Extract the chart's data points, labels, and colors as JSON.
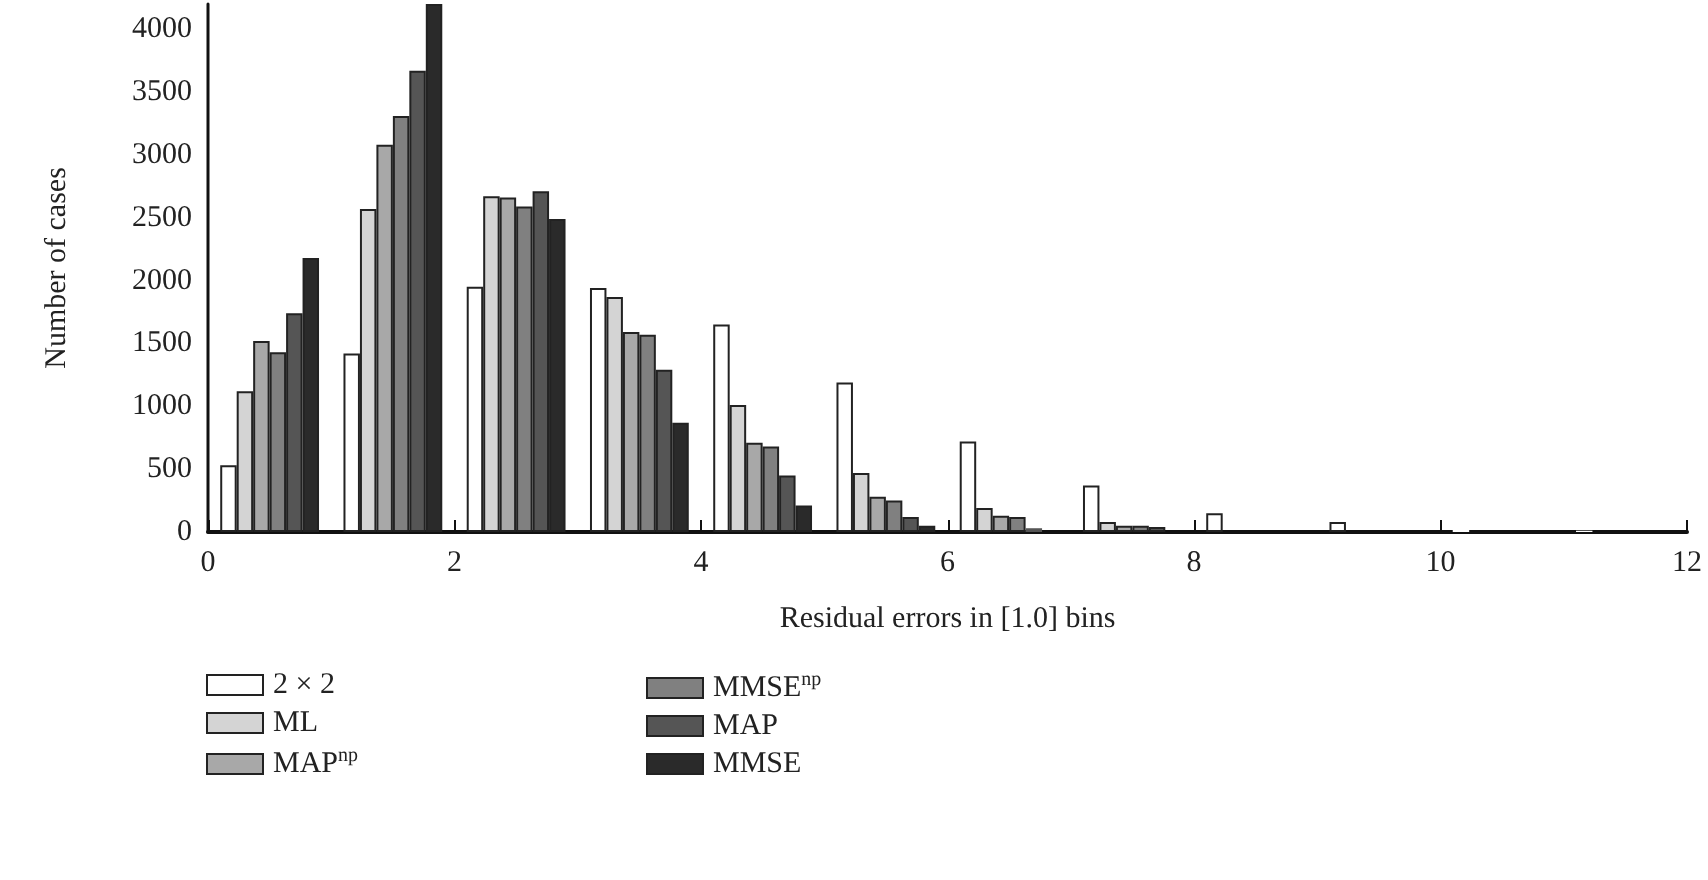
{
  "chart_data": {
    "type": "bar",
    "xlabel": "Residual errors in [1.0] bins",
    "ylabel": "Number of cases",
    "x": [
      0.5,
      1.5,
      2.5,
      3.5,
      4.5,
      5.5,
      6.5,
      7.5,
      8.5,
      9.5,
      10.5,
      11.5
    ],
    "series": [
      {
        "name": "2 × 2",
        "color": "#ffffff",
        "values": [
          530,
          1420,
          1950,
          1940,
          1650,
          1190,
          720,
          370,
          150,
          80,
          20,
          10
        ]
      },
      {
        "name": "ML",
        "color": "#d4d4d4",
        "values": [
          1120,
          2570,
          2670,
          1870,
          1010,
          470,
          190,
          80,
          null,
          null,
          null,
          0
        ]
      },
      {
        "name": "MAP$^{np}$",
        "color": "#a8a8a8",
        "values": [
          1520,
          3080,
          2660,
          1590,
          710,
          280,
          130,
          50,
          null,
          0,
          0,
          0
        ]
      },
      {
        "name": "MMSE$^{np}$",
        "color": "#808080",
        "values": [
          1430,
          3310,
          2590,
          1570,
          680,
          250,
          120,
          50,
          0,
          0,
          0,
          0
        ]
      },
      {
        "name": "MAP",
        "color": "#555555",
        "values": [
          1740,
          3670,
          2710,
          1290,
          450,
          120,
          30,
          40,
          0,
          0,
          0,
          0
        ]
      },
      {
        "name": "MMSE",
        "color": "#2a2a2a",
        "values": [
          2180,
          4200,
          2490,
          870,
          210,
          50,
          0,
          0,
          0,
          0,
          0,
          0
        ]
      }
    ],
    "xlim": [
      0,
      12
    ],
    "xticks": [
      0,
      2,
      4,
      6,
      8,
      10,
      12
    ],
    "ylim": [
      0,
      4200
    ],
    "yticks": [
      0,
      500,
      1000,
      1500,
      2000,
      2500,
      3000,
      3500,
      4000
    ],
    "grid": false,
    "legend": "bottom"
  }
}
